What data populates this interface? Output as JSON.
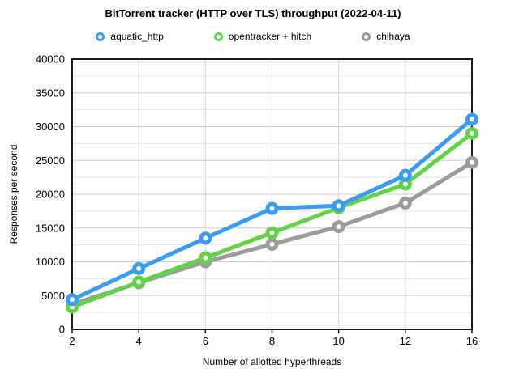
{
  "title": "BitTorrent tracker (HTTP over TLS) throughput (2022-04-11)",
  "chart_data": {
    "type": "line",
    "title": "BitTorrent tracker (HTTP over TLS) throughput (2022-04-11)",
    "xlabel": "Number of allotted hyperthreads",
    "ylabel": "Responses per second",
    "x_axis_type": "categorical",
    "categories": [
      "2",
      "4",
      "6",
      "8",
      "10",
      "12",
      "16"
    ],
    "ylim": [
      0,
      40000
    ],
    "y_major_step": 5000,
    "y_minor_step": 2500,
    "grid": true,
    "legend_position": "top",
    "frame_color": "#1a1a1a",
    "major_grid_color": "#cfcfcf",
    "minor_grid_color": "#e7e7e7",
    "vertical_grid_color": "#d9d9d9",
    "series": [
      {
        "name": "aquatic_http",
        "color": "#3b9cf4",
        "values": [
          4400,
          9000,
          13500,
          17900,
          18300,
          22800,
          31100
        ]
      },
      {
        "name": "opentracker + hitch",
        "color": "#62d346",
        "values": [
          3300,
          7000,
          10600,
          14300,
          18000,
          21500,
          29000
        ]
      },
      {
        "name": "chihaya",
        "color": "#9c9c9c",
        "values": [
          3700,
          6900,
          10000,
          12600,
          15200,
          18700,
          24700
        ]
      }
    ]
  }
}
